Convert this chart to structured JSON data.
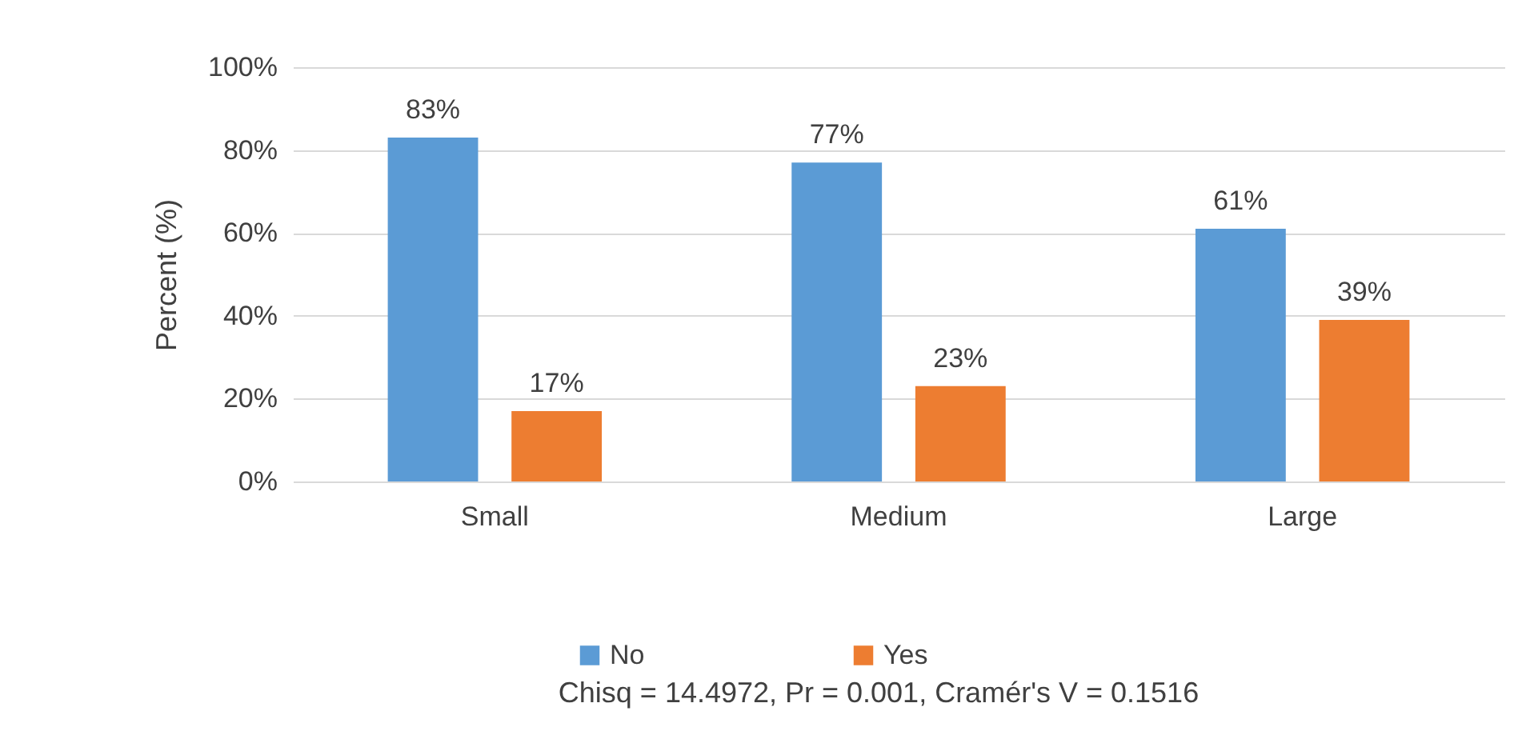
{
  "chart_data": {
    "type": "bar",
    "ylabel": "Percent (%)",
    "categories": [
      "Small",
      "Medium",
      "Large"
    ],
    "series": [
      {
        "name": "No",
        "color": "#5b9bd5",
        "values": [
          83,
          77,
          61
        ],
        "value_labels": [
          "83%",
          "77%",
          "61%"
        ]
      },
      {
        "name": "Yes",
        "color": "#ed7d31",
        "values": [
          17,
          23,
          39
        ],
        "value_labels": [
          "17%",
          "23%",
          "39%"
        ]
      }
    ],
    "ylim": [
      0,
      100
    ],
    "yticks": [
      {
        "value": 0,
        "label": "0%"
      },
      {
        "value": 20,
        "label": "20%"
      },
      {
        "value": 40,
        "label": "40%"
      },
      {
        "value": 60,
        "label": "60%"
      },
      {
        "value": 80,
        "label": "80%"
      },
      {
        "value": 100,
        "label": "100%"
      }
    ],
    "grid": "y",
    "legend": "bottom",
    "annotations": [
      "Chisq = 14.4972, Pr = 0.001,  Cramér's V =   0.1516"
    ]
  }
}
